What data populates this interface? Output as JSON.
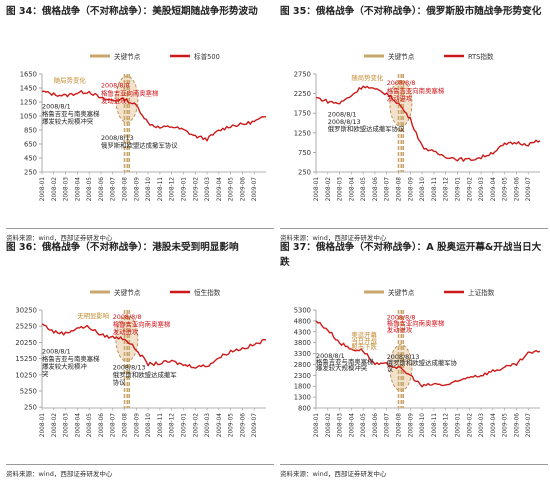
{
  "colors": {
    "red": "#cc1a1a",
    "gold": "#c9a66b",
    "axis": "#999999",
    "annotation_red": "#d0141b",
    "annotation_dark": "#222222",
    "annotation_gold": "#c38a2f",
    "ellipse_fill": "#e8c9a0",
    "ellipse_stroke": "#b9874a"
  },
  "dates": [
    "2008-01",
    "2008-02",
    "2008-03",
    "2008-04",
    "2008-05",
    "2008-06",
    "2008-07",
    "2008-08",
    "2008-09",
    "2008-10",
    "2008-11",
    "2008-12",
    "2009-01",
    "2009-02",
    "2009-03",
    "2009-04",
    "2009-05",
    "2009-06",
    "2009-07",
    "2009-08"
  ],
  "panels": [
    {
      "title": "图 34：俄格战争（不对称战争）：美股短期随战争形势波动",
      "source": "资料来源：wind，西部证券研发中心",
      "chart_data": {
        "type": "line",
        "legend": [
          "关键节点",
          "标普500"
        ],
        "ylim": [
          250,
          1650
        ],
        "yticks": [
          1650,
          1450,
          1250,
          1050,
          850,
          650,
          450,
          250
        ],
        "x_tick_labels": [
          "2008-01",
          "2008-02",
          "2008-03",
          "2008-04",
          "2008-05",
          "2008-06",
          "2008-07",
          "2008-08",
          "2008-09",
          "2008-10",
          "2008-11",
          "2008-12",
          "2009-01",
          "2009-02",
          "2009-03",
          "2009-04",
          "2009-05",
          "2009-06",
          "2009-07"
        ],
        "key_dates": [
          "2008-08-01",
          "2008-08-08",
          "2008-08-13"
        ],
        "series": [
          {
            "name": "标普500",
            "values": [
              1400,
              1360,
              1340,
              1380,
              1400,
              1300,
              1270,
              1290,
              1200,
              950,
              880,
              900,
              850,
              760,
              720,
              840,
              910,
              930,
              970,
              1040
            ]
          }
        ],
        "annotations": [
          {
            "text": "2008/8/8",
            "x": "2008-06",
            "y": 1455,
            "color": "red"
          },
          {
            "text": "格鲁吉亚向南奥塞梯",
            "x": "2008-06",
            "y": 1345,
            "color": "red"
          },
          {
            "text": "发动进攻",
            "x": "2008-06",
            "y": 1235,
            "color": "red"
          },
          {
            "text": "2008/8/1",
            "x": "2008-01",
            "y": 1160,
            "color": "dark"
          },
          {
            "text": "格鲁吉亚与南奥塞梯",
            "x": "2008-01",
            "y": 1050,
            "color": "dark"
          },
          {
            "text": "爆发较大规模冲突",
            "x": "2008-01",
            "y": 940,
            "color": "dark"
          },
          {
            "text": "2008/8/13",
            "x": "2008-06",
            "y": 710,
            "color": "dark"
          },
          {
            "text": "俄罗斯和欧盟达成撤军协议",
            "x": "2008-06",
            "y": 600,
            "color": "dark"
          },
          {
            "text": "随局势变化",
            "x": "2008-02",
            "y": 1530,
            "color": "gold"
          }
        ]
      }
    },
    {
      "title": "图 35：俄格战争（不对称战争）：俄罗斯股市随战争形势变化",
      "source": "资料来源：wind，西部证券研发中心",
      "chart_data": {
        "type": "line",
        "legend": [
          "关键节点",
          "RTS指数"
        ],
        "ylim": [
          250,
          2750
        ],
        "yticks": [
          2750,
          2250,
          1750,
          1250,
          750,
          250
        ],
        "x_tick_labels": [
          "2008-01",
          "2008-02",
          "2008-03",
          "2008-04",
          "2008-05",
          "2008-06",
          "2008-07",
          "2008-08",
          "2008-09",
          "2008-10",
          "2008-11",
          "2008-12",
          "2009-01",
          "2009-02",
          "2009-03",
          "2009-04",
          "2009-05",
          "2009-06",
          "2009-07"
        ],
        "key_dates": [
          "2008-08-01",
          "2008-08-08",
          "2008-08-13"
        ],
        "series": [
          {
            "name": "RTS指数",
            "values": [
              2150,
              2050,
              2000,
              2200,
              2450,
              2350,
              2250,
              2000,
              1600,
              900,
              750,
              650,
              580,
              560,
              620,
              750,
              950,
              1000,
              960,
              1050
            ]
          }
        ],
        "annotations": [
          {
            "text": "2008/8/8",
            "x": "2008-07",
            "y": 2470,
            "color": "red"
          },
          {
            "text": "格鲁吉亚向南奥塞梯",
            "x": "2008-07",
            "y": 2270,
            "color": "red"
          },
          {
            "text": "发动进攻",
            "x": "2008-07",
            "y": 2080,
            "color": "red"
          },
          {
            "text": "随局势变化",
            "x": "2008-04",
            "y": 2600,
            "color": "gold"
          },
          {
            "text": "2008/8/13",
            "x": "2008-02",
            "y": 1480,
            "color": "dark"
          },
          {
            "text": "俄罗斯和欧盟达成撤军协议",
            "x": "2008-02",
            "y": 1290,
            "color": "dark"
          },
          {
            "text": "2008/8/1",
            "x": "2008-02",
            "y": 1660,
            "color": "dark"
          }
        ]
      }
    },
    {
      "title": "图 36：俄格战争（不对称战争）：港股未受到明显影响",
      "source": "资料来源：wind，西部证券研发中心",
      "chart_data": {
        "type": "line",
        "legend": [
          "关键节点",
          "恒生指数"
        ],
        "ylim": [
          0,
          30250
        ],
        "yticks": [
          30250,
          25250,
          20250,
          15250,
          10250,
          5250,
          250
        ],
        "x_tick_labels": [
          "2008-01",
          "2008-02",
          "2008-03",
          "2008-04",
          "2008-05",
          "2008-06",
          "2008-07",
          "2008-08",
          "2008-09",
          "2008-10",
          "2008-11",
          "2008-12",
          "2009-01",
          "2009-02",
          "2009-03",
          "2009-04",
          "2009-05",
          "2009-06",
          "2009-07"
        ],
        "key_dates": [
          "2008-08-01",
          "2008-08-08",
          "2008-08-13"
        ],
        "series": [
          {
            "name": "恒生指数",
            "values": [
              26000,
              23500,
              23000,
              24800,
              25000,
              22500,
              21800,
              21500,
              18000,
              13500,
              13800,
              14400,
              13300,
              12800,
              13000,
              15500,
              17500,
              18400,
              19500,
              21000
            ]
          }
        ],
        "annotations": [
          {
            "text": "无明显影响",
            "x": "2008-04",
            "y": 27800,
            "color": "gold"
          },
          {
            "text": "2008/8/8",
            "x": "2008-07",
            "y": 27400,
            "color": "red"
          },
          {
            "text": "格鲁吉亚向南奥塞梯",
            "x": "2008-07",
            "y": 25100,
            "color": "red"
          },
          {
            "text": "发动进攻",
            "x": "2008-07",
            "y": 22800,
            "color": "red"
          },
          {
            "text": "2008/8/1",
            "x": "2008-01",
            "y": 16800,
            "color": "dark"
          },
          {
            "text": "格鲁吉亚与南奥塞梯",
            "x": "2008-01",
            "y": 14500,
            "color": "dark"
          },
          {
            "text": "爆发较大规模冲",
            "x": "2008-01",
            "y": 12200,
            "color": "dark"
          },
          {
            "text": "突",
            "x": "2008-01",
            "y": 9900,
            "color": "dark"
          },
          {
            "text": "2008/8/13",
            "x": "2008-07",
            "y": 11900,
            "color": "dark"
          },
          {
            "text": "俄罗斯和欧盟达成撤军",
            "x": "2008-07",
            "y": 9600,
            "color": "dark"
          },
          {
            "text": "协议",
            "x": "2008-07",
            "y": 7300,
            "color": "dark"
          }
        ]
      }
    },
    {
      "title": "图 37：俄格战争（不对称战争）：A 股奥运开幕&开战当日大跌",
      "source": "资料来源：wind，西部证券研发中心",
      "chart_data": {
        "type": "line",
        "legend": [
          "关键节点",
          "上证指数"
        ],
        "ylim": [
          800,
          5300
        ],
        "yticks": [
          5300,
          4800,
          4300,
          3800,
          3300,
          2800,
          2300,
          1800,
          1300,
          800
        ],
        "x_tick_labels": [
          "2008-01",
          "2008-02",
          "2008-03",
          "2008-04",
          "2008-05",
          "2008-06",
          "2008-07",
          "2008-08",
          "2008-09",
          "2008-10",
          "2008-11",
          "2008-12",
          "2009-01",
          "2009-02",
          "2009-03",
          "2009-04",
          "2009-05",
          "2009-06",
          "2009-07"
        ],
        "key_dates": [
          "2008-08-01",
          "2008-08-08",
          "2008-08-13"
        ],
        "series": [
          {
            "name": "上证指数",
            "values": [
              4800,
              4400,
              3800,
              3500,
              3450,
              2800,
              2800,
              2650,
              2300,
              1800,
              1900,
              1850,
              2000,
              2250,
              2300,
              2500,
              2650,
              2800,
              3300,
              3400
            ]
          }
        ],
        "annotations": [
          {
            "text": "2008/8/8",
            "x": "2008-07",
            "y": 4860,
            "color": "red"
          },
          {
            "text": "格鲁吉亚向南奥塞梯",
            "x": "2008-07",
            "y": 4580,
            "color": "red"
          },
          {
            "text": "发动进攻",
            "x": "2008-07",
            "y": 4300,
            "color": "red"
          },
          {
            "text": "奥运开幕",
            "x": "2008-04",
            "y": 4050,
            "color": "gold"
          },
          {
            "text": "当日开战",
            "x": "2008-04",
            "y": 3780,
            "color": "gold"
          },
          {
            "text": "股市下跌",
            "x": "2008-04",
            "y": 3510,
            "color": "gold"
          },
          {
            "text": "2008/8/1",
            "x": "2008-01",
            "y": 3100,
            "color": "dark"
          },
          {
            "text": "格鲁吉亚与南奥塞梯",
            "x": "2008-01",
            "y": 2820,
            "color": "dark"
          },
          {
            "text": "爆发较大规模冲突",
            "x": "2008-01",
            "y": 2540,
            "color": "dark"
          },
          {
            "text": "2008/8/13",
            "x": "2008-07",
            "y": 3050,
            "color": "dark"
          },
          {
            "text": "俄罗斯和欧盟达成撤军协",
            "x": "2008-07",
            "y": 2770,
            "color": "dark"
          },
          {
            "text": "议",
            "x": "2008-07",
            "y": 2490,
            "color": "dark"
          }
        ]
      }
    }
  ]
}
